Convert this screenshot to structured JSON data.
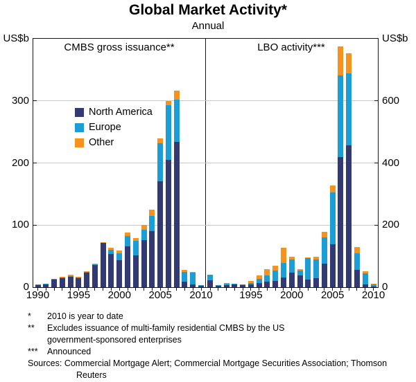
{
  "title": "Global Market Activity*",
  "subtitle": "Annual",
  "axis_left_unit": "US$b",
  "axis_right_unit": "US$b",
  "legend": [
    "North America",
    "Europe",
    "Other"
  ],
  "series_colors": [
    "#333A73",
    "#1B9ED6",
    "#F6921E"
  ],
  "chart_data": [
    {
      "type": "bar",
      "stacked": true,
      "title": "CMBS gross issuance**",
      "ylabel": "US$b",
      "ylim": [
        0,
        400
      ],
      "yticks": [
        0,
        100,
        200,
        300
      ],
      "grid": true,
      "legend_position": "upper-left",
      "categories": [
        1990,
        1991,
        1992,
        1993,
        1994,
        1995,
        1996,
        1997,
        1998,
        1999,
        2000,
        2001,
        2002,
        2003,
        2004,
        2005,
        2006,
        2007,
        2008,
        2009,
        2010
      ],
      "series": [
        {
          "name": "North America",
          "values": [
            3,
            5,
            12,
            15,
            17,
            15,
            24,
            36,
            71,
            53,
            44,
            66,
            51,
            76,
            90,
            170,
            205,
            234,
            9,
            4,
            2
          ]
        },
        {
          "name": "Europe",
          "values": [
            1,
            1,
            1,
            1,
            1,
            1,
            1,
            1,
            1,
            7,
            11,
            16,
            24,
            17,
            25,
            62,
            88,
            68,
            15,
            19,
            1
          ]
        },
        {
          "name": "Other",
          "values": [
            0,
            0,
            0,
            1,
            2,
            1,
            1,
            1,
            1,
            4,
            4,
            6,
            4,
            7,
            10,
            8,
            7,
            15,
            4,
            2,
            0
          ]
        }
      ],
      "xticks": [
        {
          "index": 0,
          "label": "1990"
        },
        {
          "index": 5,
          "label": "1995"
        },
        {
          "index": 10,
          "label": "2000"
        },
        {
          "index": 15,
          "label": "2005"
        },
        {
          "index": 20,
          "label": "2010"
        }
      ]
    },
    {
      "type": "bar",
      "stacked": true,
      "title": "LBO activity***",
      "ylabel": "US$b",
      "ylim": [
        0,
        800
      ],
      "yticks": [
        0,
        200,
        400,
        600
      ],
      "grid": true,
      "categories": [
        1990,
        1991,
        1992,
        1993,
        1994,
        1995,
        1996,
        1997,
        1998,
        1999,
        2000,
        2001,
        2002,
        2003,
        2004,
        2005,
        2006,
        2007,
        2008,
        2009,
        2010
      ],
      "series": [
        {
          "name": "North America",
          "values": [
            22,
            5,
            6,
            8,
            7,
            8,
            14,
            18,
            21,
            32,
            47,
            39,
            25,
            30,
            75,
            138,
            418,
            456,
            55,
            8,
            3
          ]
        },
        {
          "name": "Europe",
          "values": [
            18,
            2,
            6,
            3,
            3,
            6,
            13,
            21,
            33,
            47,
            42,
            15,
            68,
            60,
            85,
            168,
            264,
            233,
            55,
            36,
            8
          ]
        },
        {
          "name": "Other",
          "values": [
            0,
            0,
            1,
            0,
            0,
            7,
            10,
            20,
            16,
            47,
            9,
            4,
            2,
            8,
            18,
            22,
            93,
            64,
            20,
            8,
            1
          ]
        }
      ],
      "xticks": [
        {
          "index": 5,
          "label": "1995"
        },
        {
          "index": 10,
          "label": "2000"
        },
        {
          "index": 15,
          "label": "2005"
        },
        {
          "index": 20,
          "label": "2010"
        }
      ]
    }
  ],
  "footnotes": [
    {
      "marker": "*",
      "text": "2010 is year to date"
    },
    {
      "marker": "**",
      "text": "Excludes issuance of multi-family residential CMBS by the US government-sponsored enterprises"
    },
    {
      "marker": "***",
      "text": "Announced"
    }
  ],
  "sources_label": "Sources:",
  "sources_text": "Commercial Mortgage Alert; Commercial Mortgage Securities Association; Thomson Reuters"
}
